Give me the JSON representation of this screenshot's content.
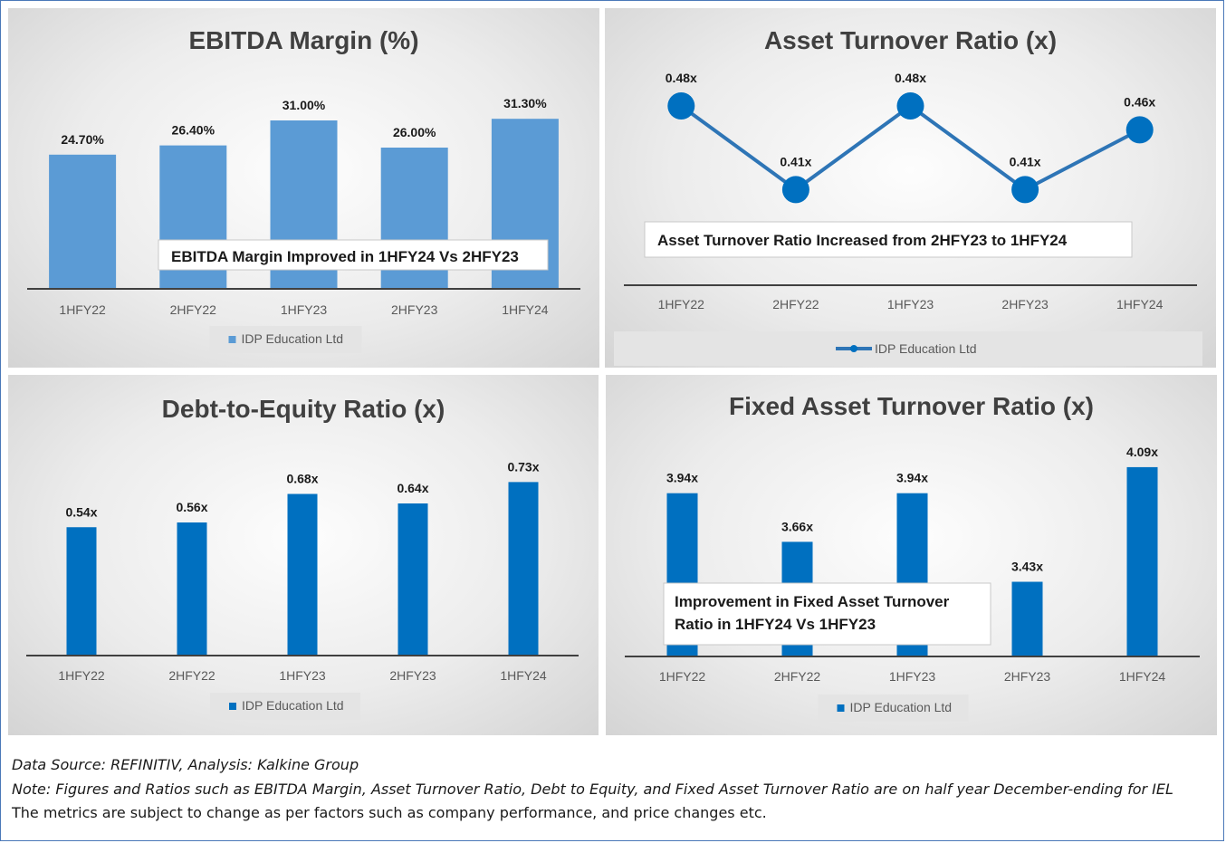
{
  "chart_data": [
    {
      "type": "bar",
      "title": "EBITDA Margin (%)",
      "categories": [
        "1HFY22",
        "2HFY22",
        "1HFY23",
        "2HFY23",
        "1HFY24"
      ],
      "series": [
        {
          "name": "IDP Education Ltd",
          "values": [
            24.7,
            26.4,
            31.0,
            26.0,
            31.3
          ]
        }
      ],
      "data_labels": [
        "24.70%",
        "26.40%",
        "31.00%",
        "26.00%",
        "31.30%"
      ],
      "ylim": [
        0,
        35
      ],
      "annotation": "EBITDA Margin Improved in 1HFY24 Vs 2HFY23",
      "legend": "bottom",
      "grid": false,
      "color": "#5b9bd5"
    },
    {
      "type": "line",
      "title": "Asset Turnover Ratio (x)",
      "categories": [
        "1HFY22",
        "2HFY22",
        "1HFY23",
        "2HFY23",
        "1HFY24"
      ],
      "series": [
        {
          "name": "IDP Education Ltd",
          "values": [
            0.48,
            0.41,
            0.48,
            0.41,
            0.46
          ]
        }
      ],
      "data_labels": [
        "0.48x",
        "0.41x",
        "0.48x",
        "0.41x",
        "0.46x"
      ],
      "ylim": [
        0.33,
        0.48
      ],
      "annotation": "Asset Turnover Ratio Increased from 2HFY23 to 1HFY24",
      "legend": "bottom",
      "grid": false,
      "color": "#2e75b6"
    },
    {
      "type": "bar",
      "title": "Debt-to-Equity Ratio (x)",
      "categories": [
        "1HFY22",
        "2HFY22",
        "1HFY23",
        "2HFY23",
        "1HFY24"
      ],
      "series": [
        {
          "name": "IDP Education Ltd",
          "values": [
            0.54,
            0.56,
            0.68,
            0.64,
            0.73
          ]
        }
      ],
      "data_labels": [
        "0.54x",
        "0.56x",
        "0.68x",
        "0.64x",
        "0.73x"
      ],
      "ylim": [
        0,
        0.8
      ],
      "legend": "bottom",
      "grid": false,
      "color": "#0070c0"
    },
    {
      "type": "bar",
      "title": "Fixed Asset Turnover Ratio (x)",
      "categories": [
        "1HFY22",
        "2HFY22",
        "1HFY23",
        "2HFY23",
        "1HFY24"
      ],
      "series": [
        {
          "name": "IDP Education Ltd",
          "values": [
            3.94,
            3.66,
            3.94,
            3.43,
            4.09
          ]
        }
      ],
      "data_labels": [
        "3.94x",
        "3.66x",
        "3.94x",
        "3.43x",
        "4.09x"
      ],
      "ylim": [
        3.0,
        4.1
      ],
      "annotation_lines": [
        "Improvement in Fixed Asset Turnover",
        "Ratio  in 1HFY24 Vs 1HFY23"
      ],
      "legend": "bottom",
      "grid": false,
      "color": "#0070c0"
    }
  ],
  "footer": {
    "source": "Data Source: REFINITIV, Analysis: Kalkine Group",
    "note": "Note: Figures and Ratios such as EBITDA Margin, Asset Turnover Ratio, Debt to Equity, and Fixed Asset Turnover Ratio are on half year December-ending for IEL",
    "disclaimer": "The metrics are subject to change as per factors such as company performance, and price changes etc."
  }
}
